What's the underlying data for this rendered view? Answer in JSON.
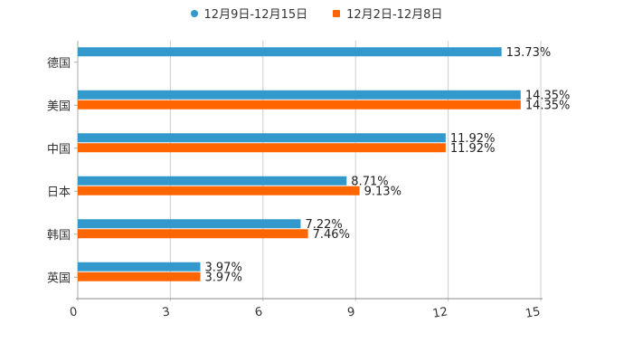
{
  "chart_data": {
    "type": "bar",
    "orientation": "horizontal",
    "title": "",
    "xlabel": "",
    "ylabel": "",
    "xlim": [
      0,
      15
    ],
    "x_ticks": [
      "0",
      "3",
      "6",
      "9",
      "12",
      "15"
    ],
    "grid": true,
    "legend_position": "top-center",
    "categories": [
      "德国",
      "美国",
      "中国",
      "日本",
      "韩国",
      "英国"
    ],
    "series": [
      {
        "name": "12月9日-12月15日",
        "color": "#3399cc",
        "marker": "circle",
        "values": [
          13.73,
          14.35,
          11.92,
          8.71,
          7.22,
          3.97
        ],
        "labels": [
          "13.73%",
          "14.35%",
          "11.92%",
          "8.71%",
          "7.22%",
          "3.97%"
        ]
      },
      {
        "name": "12月2日-12月8日",
        "color": "#ff6600",
        "marker": "square",
        "values": [
          null,
          14.35,
          11.92,
          9.13,
          7.46,
          3.97
        ],
        "labels": [
          null,
          "14.35%",
          "11.92%",
          "9.13%",
          "7.46%",
          "3.97%"
        ]
      }
    ]
  }
}
